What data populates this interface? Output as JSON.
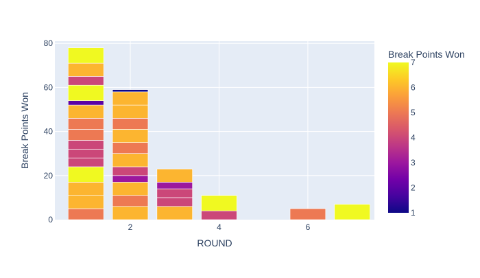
{
  "chart_data": {
    "type": "bar",
    "barmode": "stack",
    "xlabel": "ROUND",
    "ylabel": "Break Points Won",
    "xlim": [
      0.3,
      7.5
    ],
    "ylim": [
      0,
      81
    ],
    "x_ticks": [
      2,
      4,
      6
    ],
    "y_ticks": [
      0,
      20,
      40,
      60,
      80
    ],
    "grid": true,
    "colorbar": {
      "title": "Break Points Won",
      "min": 1,
      "max": 7,
      "ticks": [
        1,
        2,
        3,
        4,
        5,
        6,
        7
      ],
      "colorscale": [
        "#0d0887",
        "#46039f",
        "#7201a8",
        "#9c179e",
        "#bd3786",
        "#d8576b",
        "#ed7953",
        "#fb9f3a",
        "#fdca26",
        "#f0f921"
      ]
    },
    "bars": [
      {
        "round": 1,
        "segments": [
          5,
          6,
          6,
          7,
          4,
          4,
          4,
          5,
          5,
          6,
          2,
          7,
          4,
          6,
          7
        ]
      },
      {
        "round": 2,
        "segments": [
          6,
          5,
          6,
          3,
          4,
          6,
          5,
          6,
          5,
          6,
          6,
          1
        ]
      },
      {
        "round": 3,
        "segments": [
          6,
          4,
          4,
          3,
          6
        ]
      },
      {
        "round": 4,
        "segments": [
          4,
          7
        ]
      },
      {
        "round": 6,
        "segments": [
          5
        ]
      },
      {
        "round": 7,
        "segments": [
          7
        ]
      }
    ]
  }
}
